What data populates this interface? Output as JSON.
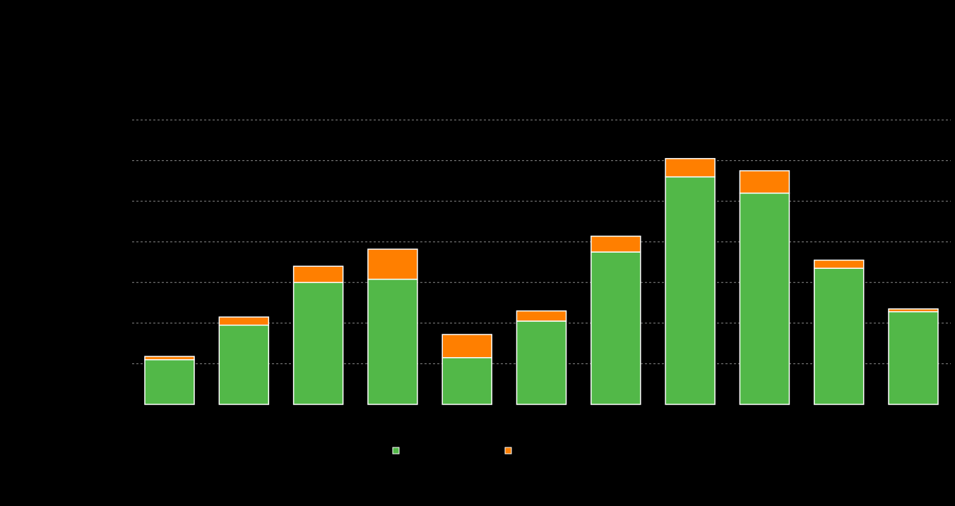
{
  "chart_data": {
    "type": "bar",
    "stacked": true,
    "title": "",
    "xlabel": "",
    "ylabel": "",
    "categories": [
      "",
      "",
      "",
      "",
      "",
      "",
      "",
      "",
      "",
      "",
      ""
    ],
    "series": [
      {
        "name": "",
        "color": "#52b848",
        "values": [
          1.1,
          1.95,
          3.0,
          3.08,
          1.15,
          2.05,
          3.75,
          5.6,
          5.2,
          3.35,
          2.28
        ]
      },
      {
        "name": "",
        "color": "#ff7f00",
        "values": [
          0.08,
          0.2,
          0.4,
          0.74,
          0.57,
          0.25,
          0.39,
          0.45,
          0.55,
          0.2,
          0.07
        ]
      }
    ],
    "ylim": [
      0,
      7
    ],
    "yticks": [
      0,
      1,
      2,
      3,
      4,
      5,
      6,
      7
    ],
    "grid": true,
    "legend": "bottom-center"
  }
}
